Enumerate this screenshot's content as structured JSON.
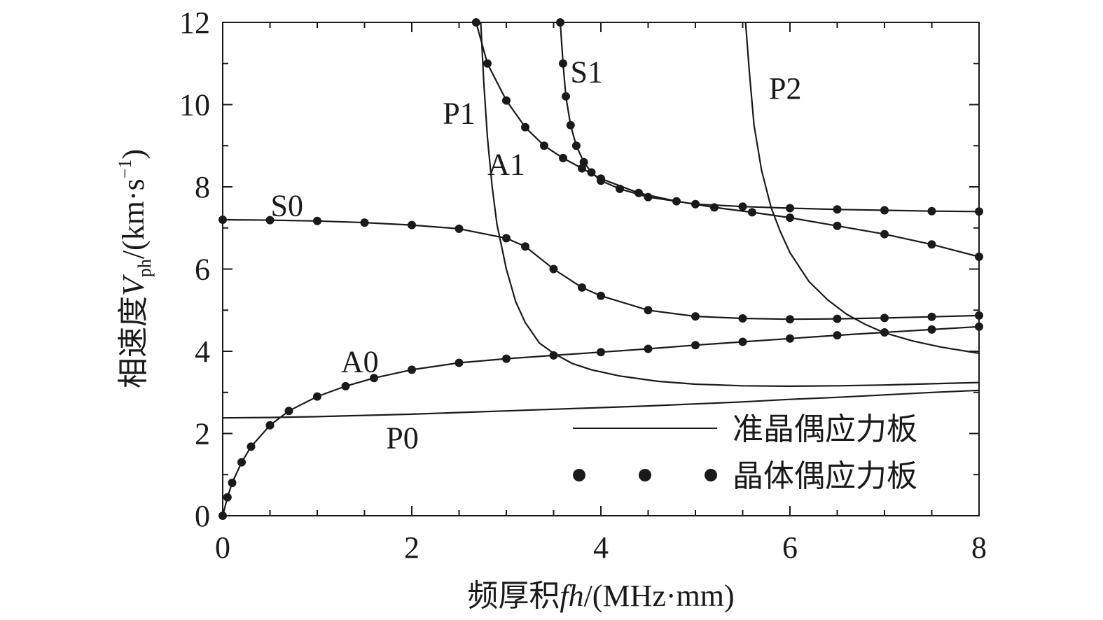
{
  "chart_data": {
    "type": "line",
    "title": "",
    "xlabel": {
      "prefix": "频厚积",
      "var": "fh",
      "suffix": "/(MHz·mm)"
    },
    "ylabel": {
      "prefix": "相速度",
      "var": "V",
      "sub": "ph",
      "unit_pre": "/(km·s",
      "sup": "−1",
      "unit_post": ")"
    },
    "xlim": [
      0,
      8
    ],
    "ylim": [
      0,
      12
    ],
    "xticks": [
      0,
      2,
      4,
      6,
      8
    ],
    "yticks": [
      0,
      2,
      4,
      6,
      8,
      10,
      12
    ],
    "xtick_labels": [
      "0",
      "2",
      "4",
      "6",
      "8"
    ],
    "ytick_labels": [
      "0",
      "2",
      "4",
      "6",
      "8",
      "10",
      "12"
    ],
    "grid": false,
    "legend": {
      "position": "bottom-right",
      "entries": [
        {
          "label": "准晶偶应力板",
          "style": "line"
        },
        {
          "label": "晶体偶应力板",
          "style": "dots"
        }
      ]
    },
    "series": [
      {
        "group": "准晶偶应力板",
        "style": "line",
        "mode": "P0",
        "x": [
          0,
          0.5,
          1,
          1.5,
          2,
          2.5,
          3,
          3.5,
          4,
          4.5,
          5,
          5.5,
          6,
          6.5,
          7,
          7.5,
          8
        ],
        "y": [
          2.38,
          2.39,
          2.41,
          2.44,
          2.47,
          2.51,
          2.55,
          2.59,
          2.63,
          2.67,
          2.72,
          2.77,
          2.83,
          2.88,
          2.94,
          3.0,
          3.05
        ]
      },
      {
        "group": "准晶偶应力板",
        "style": "line",
        "mode": "P1",
        "x": [
          2.73,
          2.76,
          2.8,
          2.85,
          2.9,
          3.0,
          3.1,
          3.2,
          3.35,
          3.5,
          3.7,
          3.9,
          4.2,
          4.6,
          5.0,
          5.5,
          6.0,
          6.5,
          7.0,
          7.5,
          8.0
        ],
        "y": [
          12.0,
          10.6,
          9.2,
          8.0,
          7.1,
          6.0,
          5.2,
          4.7,
          4.2,
          3.95,
          3.7,
          3.55,
          3.4,
          3.27,
          3.2,
          3.16,
          3.15,
          3.16,
          3.18,
          3.21,
          3.24
        ]
      },
      {
        "group": "准晶偶应力板",
        "style": "line",
        "mode": "P2",
        "x": [
          5.53,
          5.57,
          5.62,
          5.7,
          5.8,
          5.9,
          6.0,
          6.2,
          6.4,
          6.6,
          6.8,
          7.0,
          7.3,
          7.6,
          8.0
        ],
        "y": [
          12.0,
          10.8,
          9.5,
          8.4,
          7.5,
          6.9,
          6.4,
          5.7,
          5.25,
          4.9,
          4.65,
          4.45,
          4.25,
          4.1,
          3.95
        ]
      },
      {
        "group": "准晶偶应力板",
        "style": "line",
        "mode": "S0",
        "x": [
          0,
          0.5,
          1,
          1.5,
          2,
          2.5,
          3,
          3.2,
          3.5,
          3.8,
          4,
          4.5,
          5,
          5.5,
          6,
          6.5,
          7,
          7.5,
          8
        ],
        "y": [
          7.2,
          7.19,
          7.17,
          7.13,
          7.07,
          6.98,
          6.75,
          6.55,
          6.0,
          5.55,
          5.35,
          5.0,
          4.85,
          4.8,
          4.78,
          4.79,
          4.81,
          4.84,
          4.87
        ]
      },
      {
        "group": "准晶偶应力板",
        "style": "line",
        "mode": "A0",
        "x": [
          0,
          0.05,
          0.1,
          0.2,
          0.3,
          0.5,
          0.7,
          1.0,
          1.3,
          1.6,
          2.0,
          2.5,
          3.0,
          3.5,
          4.0,
          4.5,
          5.0,
          5.5,
          6.0,
          6.5,
          7.0,
          7.5,
          8.0
        ],
        "y": [
          0,
          0.45,
          0.8,
          1.3,
          1.68,
          2.2,
          2.55,
          2.9,
          3.15,
          3.35,
          3.55,
          3.72,
          3.82,
          3.9,
          3.98,
          4.06,
          4.15,
          4.23,
          4.31,
          4.39,
          4.46,
          4.53,
          4.6
        ]
      },
      {
        "group": "准晶偶应力板",
        "style": "line",
        "mode": "A1",
        "x": [
          2.68,
          2.8,
          3.0,
          3.2,
          3.4,
          3.6,
          3.8,
          4.0,
          4.4,
          4.8,
          5.2,
          5.6,
          6.0,
          6.5,
          7.0,
          7.5,
          8.0
        ],
        "y": [
          12.0,
          11.0,
          10.1,
          9.45,
          9.0,
          8.7,
          8.45,
          8.2,
          7.85,
          7.65,
          7.5,
          7.38,
          7.25,
          7.05,
          6.85,
          6.6,
          6.3
        ]
      },
      {
        "group": "准晶偶应力板",
        "style": "line",
        "mode": "S1",
        "x": [
          3.57,
          3.6,
          3.63,
          3.68,
          3.74,
          3.82,
          3.9,
          4.0,
          4.2,
          4.5,
          5.0,
          5.5,
          6.0,
          6.5,
          7.0,
          7.5,
          8.0
        ],
        "y": [
          12.0,
          11.0,
          10.2,
          9.5,
          9.0,
          8.6,
          8.35,
          8.15,
          7.95,
          7.75,
          7.58,
          7.52,
          7.48,
          7.45,
          7.43,
          7.41,
          7.4
        ]
      },
      {
        "group": "晶体偶应力板",
        "style": "dots",
        "mode": "S0",
        "x": [
          0,
          0.5,
          1,
          1.5,
          2,
          2.5,
          3,
          3.2,
          3.5,
          3.8,
          4,
          4.5,
          5,
          5.5,
          6,
          6.5,
          7,
          7.5,
          8
        ],
        "y": [
          7.2,
          7.19,
          7.17,
          7.13,
          7.07,
          6.98,
          6.75,
          6.55,
          6.0,
          5.55,
          5.35,
          5.0,
          4.85,
          4.8,
          4.78,
          4.79,
          4.81,
          4.84,
          4.87
        ]
      },
      {
        "group": "晶体偶应力板",
        "style": "dots",
        "mode": "A0",
        "x": [
          0,
          0.05,
          0.1,
          0.2,
          0.3,
          0.5,
          0.7,
          1.0,
          1.3,
          1.6,
          2.0,
          2.5,
          3.0,
          3.5,
          4.0,
          4.5,
          5.0,
          5.5,
          6.0,
          6.5,
          7.0,
          7.5,
          8.0
        ],
        "y": [
          0,
          0.45,
          0.8,
          1.3,
          1.68,
          2.2,
          2.55,
          2.9,
          3.15,
          3.35,
          3.55,
          3.72,
          3.82,
          3.9,
          3.98,
          4.06,
          4.15,
          4.23,
          4.31,
          4.39,
          4.46,
          4.53,
          4.6
        ]
      },
      {
        "group": "晶体偶应力板",
        "style": "dots",
        "mode": "A1",
        "x": [
          2.68,
          2.8,
          3.0,
          3.2,
          3.4,
          3.6,
          3.8,
          4.0,
          4.4,
          4.8,
          5.2,
          5.6,
          6.0,
          6.5,
          7.0,
          7.5,
          8.0
        ],
        "y": [
          12.0,
          11.0,
          10.1,
          9.45,
          9.0,
          8.7,
          8.45,
          8.2,
          7.85,
          7.65,
          7.5,
          7.38,
          7.25,
          7.05,
          6.85,
          6.6,
          6.3
        ]
      },
      {
        "group": "晶体偶应力板",
        "style": "dots",
        "mode": "S1",
        "x": [
          3.57,
          3.6,
          3.63,
          3.68,
          3.74,
          3.82,
          3.9,
          4.0,
          4.2,
          4.5,
          5.0,
          5.5,
          6.0,
          6.5,
          7.0,
          7.5,
          8.0
        ],
        "y": [
          12.0,
          11.0,
          10.2,
          9.5,
          9.0,
          8.6,
          8.35,
          8.15,
          7.95,
          7.75,
          7.58,
          7.52,
          7.48,
          7.45,
          7.43,
          7.41,
          7.4
        ]
      }
    ],
    "annotations": [
      {
        "text": "P0",
        "x": 1.9,
        "y": 1.9
      },
      {
        "text": "A0",
        "x": 1.45,
        "y": 3.75
      },
      {
        "text": "S0",
        "x": 0.68,
        "y": 7.55
      },
      {
        "text": "P1",
        "x": 2.5,
        "y": 9.8
      },
      {
        "text": "A1",
        "x": 3.0,
        "y": 8.55
      },
      {
        "text": "S1",
        "x": 3.85,
        "y": 10.8
      },
      {
        "text": "P2",
        "x": 5.95,
        "y": 10.4
      }
    ]
  }
}
